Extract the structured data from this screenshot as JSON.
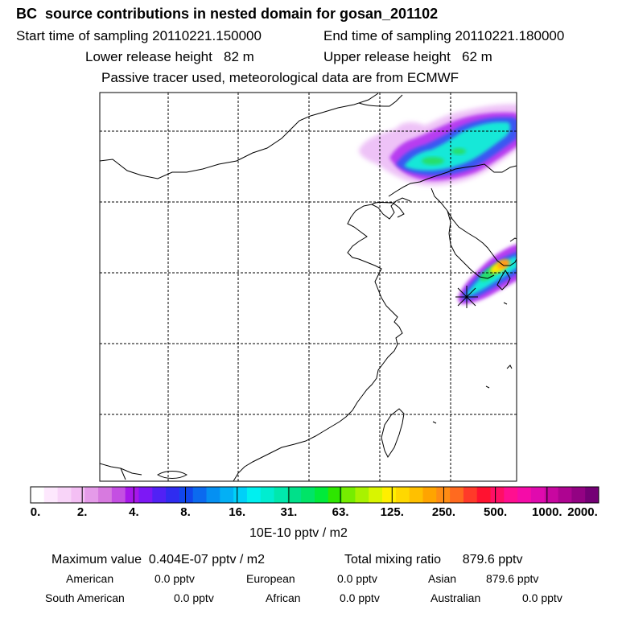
{
  "header": {
    "title": "BC  source contributions in nested domain for gosan_201102",
    "start_label": "Start time of sampling",
    "start_value": "20110221.150000",
    "end_label": "End time of sampling",
    "end_value": "20110221.180000",
    "lower_label": "Lower release height",
    "lower_value": "82 m",
    "upper_label": "Upper release height",
    "upper_value": "62 m",
    "passive_note": "Passive tracer used, meteorological data are from ECMWF"
  },
  "chart_data": {
    "type": "heatmap",
    "title": "BC  source contributions in nested domain for gosan_201102",
    "units": "10E-10 pptv / m2",
    "colorbar_ticks": [
      "0.",
      "2.",
      "4.",
      "8.",
      "16.",
      "31.",
      "63.",
      "125.",
      "250.",
      "500.",
      "1000.",
      "2000."
    ],
    "colorbar_colors": [
      "#ffffff",
      "#fde8fd",
      "#f8d4f8",
      "#f4bff4",
      "#e59be9",
      "#d77adf",
      "#c44fe2",
      "#a717ea",
      "#7d18f5",
      "#5121f5",
      "#2f2cf0",
      "#1146ec",
      "#0b6aef",
      "#0590f2",
      "#03b0f5",
      "#00d0f8",
      "#00f0f0",
      "#00edd0",
      "#00e8ad",
      "#00e08a",
      "#00e467",
      "#00ea3a",
      "#2ee600",
      "#76ed00",
      "#a8f200",
      "#d9f500",
      "#ffef00",
      "#ffd800",
      "#ffc000",
      "#ffa400",
      "#ff8c14",
      "#ff6a1f",
      "#ff3a29",
      "#ff1230",
      "#ff0f65",
      "#ff0f90",
      "#f50ca8",
      "#e00aae",
      "#c807a0",
      "#ae0491",
      "#930283",
      "#740075"
    ],
    "plume_colors": {
      "magenta": "#e090f0",
      "violet": "#b83cf0",
      "blue": "#3a57f2",
      "cyan": "#19e8d8",
      "green": "#28df6a",
      "yellow": "#ffe800",
      "orange": "#ff9a1e"
    },
    "receptor": "gosan",
    "max_value_label": "Maximum value",
    "max_value": "0.404E-07 pptv / m2",
    "total_label": "Total mixing ratio",
    "total_value": "879.6 pptv"
  },
  "contributions": [
    {
      "name": "American",
      "value": "0.0 pptv"
    },
    {
      "name": "European",
      "value": "0.0 pptv"
    },
    {
      "name": "Asian",
      "value": "879.6 pptv"
    },
    {
      "name": "South American",
      "value": "0.0 pptv"
    },
    {
      "name": "African",
      "value": "0.0 pptv"
    },
    {
      "name": "Australian",
      "value": "0.0 pptv"
    }
  ]
}
